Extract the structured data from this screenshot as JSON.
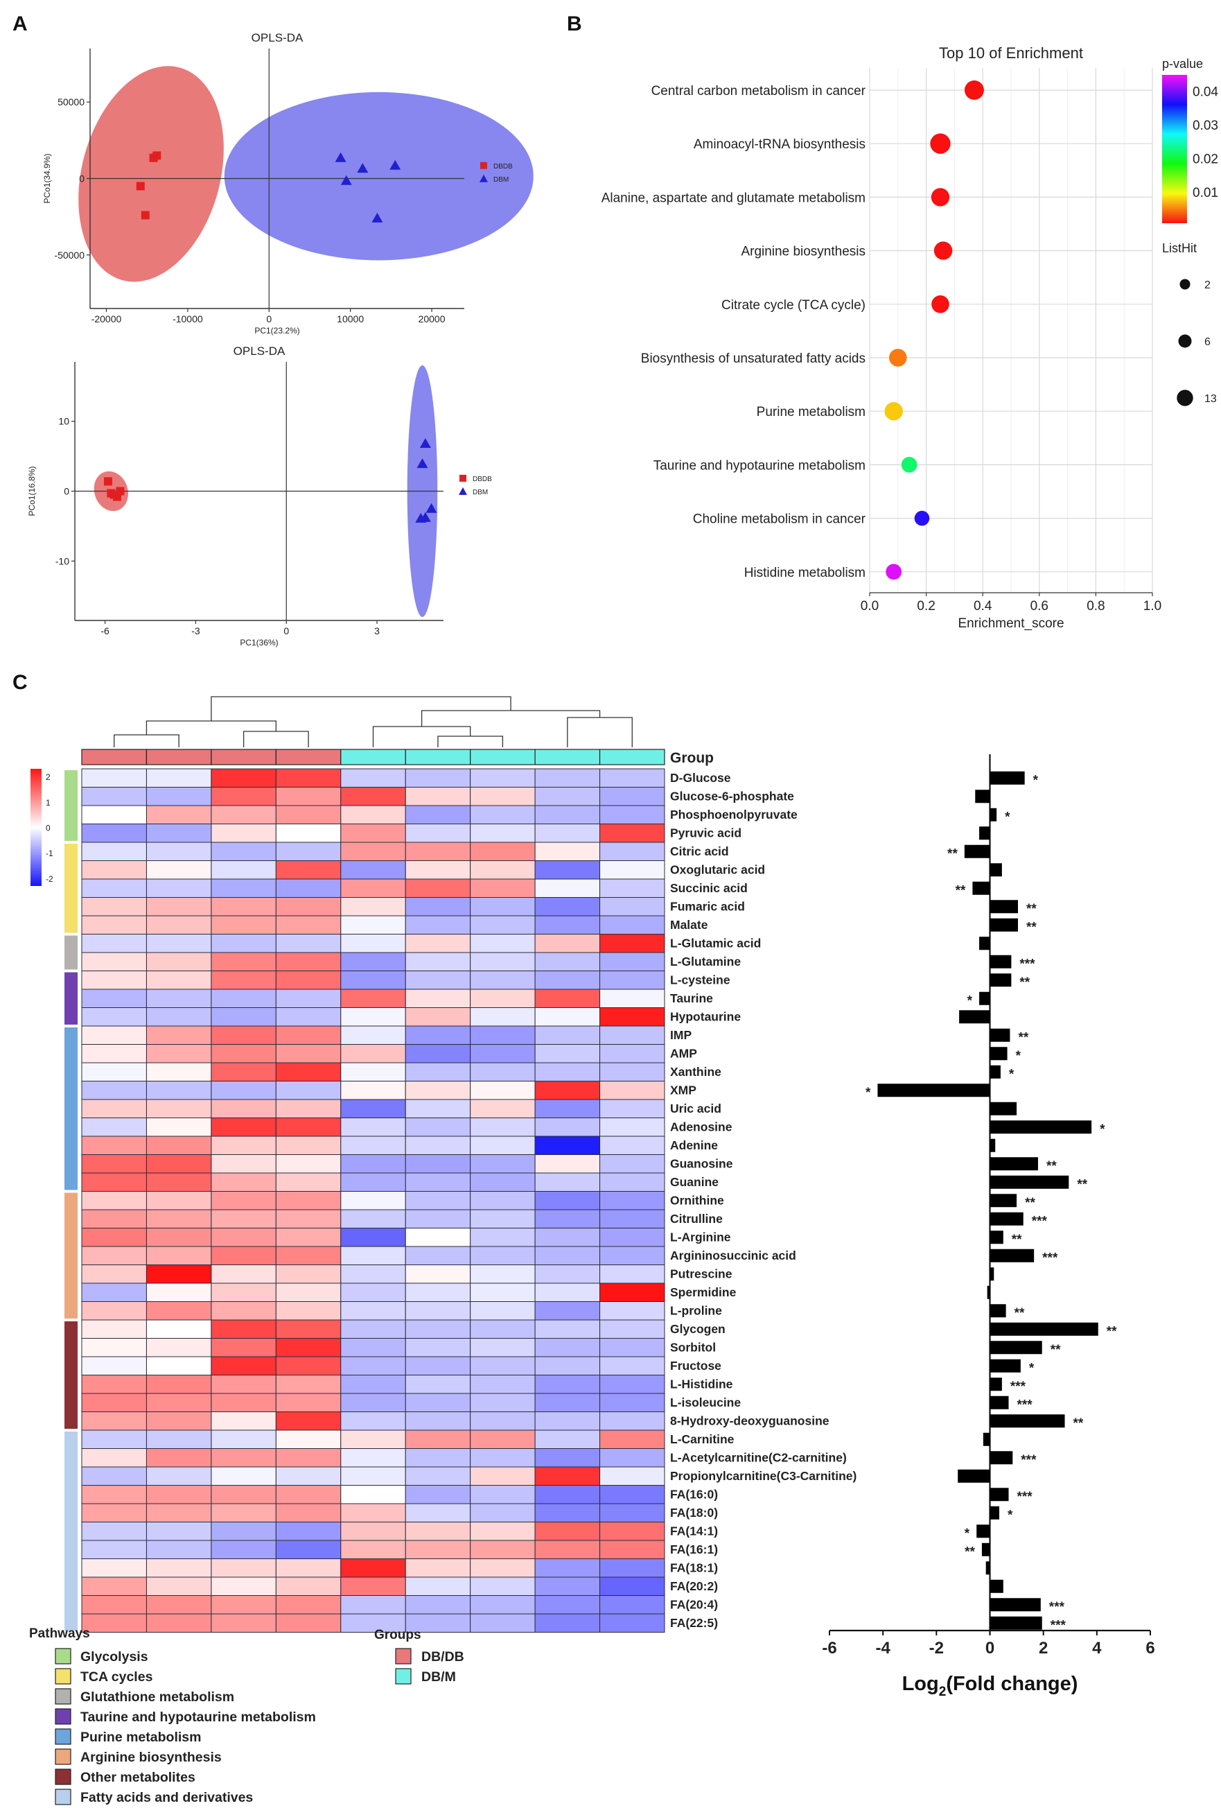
{
  "panel_labels": {
    "a": "A",
    "b": "B",
    "c": "C"
  },
  "chart_data": [
    {
      "type": "scatter",
      "panel": "A-top",
      "title": "OPLS-DA",
      "xlabel": "PC1(23.2%)",
      "ylabel": "PCo1(34.9%)",
      "xlim": [
        -22000,
        24000
      ],
      "ylim": [
        -85000,
        85000
      ],
      "xticks": [
        "-20000",
        "-10000",
        "0",
        "10000",
        "20000"
      ],
      "xtick_values": [
        -20000,
        -10000,
        0,
        10000,
        20000
      ],
      "yticks": [
        "50000",
        "0",
        "-50000"
      ],
      "ytick_values": [
        50000,
        0,
        -50000
      ],
      "legend": [
        {
          "name": "DBDB",
          "color": "#e02020",
          "marker": "square"
        },
        {
          "name": "DBM",
          "color": "#2020d0",
          "marker": "triangle"
        }
      ],
      "ellipses": [
        {
          "group": "DBDB",
          "cx": -14500,
          "cy": 3000,
          "rx": 8500,
          "ry": 72000,
          "angle": 15,
          "color": "#e97a7a"
        },
        {
          "group": "DBM",
          "cx": 13500,
          "cy": 1500,
          "rx": 19000,
          "ry": 55000,
          "angle": 0,
          "color": "#8787ef"
        }
      ],
      "series": [
        {
          "name": "DBDB",
          "points": [
            [
              -13800,
              15000
            ],
            [
              -14200,
              13500
            ],
            [
              -15800,
              -5000
            ],
            [
              -15200,
              -24000
            ]
          ]
        },
        {
          "name": "DBM",
          "points": [
            [
              8800,
              13500
            ],
            [
              11500,
              6500
            ],
            [
              15500,
              8500
            ],
            [
              9500,
              -1500
            ],
            [
              13300,
              -26000
            ]
          ]
        }
      ]
    },
    {
      "type": "scatter",
      "panel": "A-bottom",
      "title": "OPLS-DA",
      "xlabel": "PC1(36%)",
      "ylabel": "PCo1(16.8%)",
      "xlim": [
        -7.0,
        5.2
      ],
      "ylim": [
        -18.5,
        18.5
      ],
      "xticks": [
        "-6",
        "-3",
        "0",
        "3"
      ],
      "xtick_values": [
        -6,
        -3,
        0,
        3
      ],
      "yticks": [
        "10",
        "0",
        "-10"
      ],
      "ytick_values": [
        10,
        0,
        -10
      ],
      "legend": [
        {
          "name": "DBDB",
          "color": "#e02020",
          "marker": "square"
        },
        {
          "name": "DBM",
          "color": "#2020d0",
          "marker": "triangle"
        }
      ],
      "ellipses": [
        {
          "group": "DBDB",
          "cx": -5.8,
          "cy": 0.0,
          "rx": 0.55,
          "ry": 2.9,
          "angle": -20,
          "color": "#e97a7a"
        },
        {
          "group": "DBM",
          "cx": 4.5,
          "cy": 0.0,
          "rx": 0.5,
          "ry": 18.0,
          "angle": 0,
          "color": "#8787ef"
        }
      ],
      "series": [
        {
          "name": "DBDB",
          "points": [
            [
              -5.9,
              1.4
            ],
            [
              -5.7,
              -0.5
            ],
            [
              -5.5,
              0.0
            ],
            [
              -5.6,
              -0.8
            ],
            [
              -5.8,
              -0.3
            ]
          ]
        },
        {
          "name": "DBM",
          "points": [
            [
              4.6,
              6.8
            ],
            [
              4.5,
              3.9
            ],
            [
              4.8,
              -2.5
            ],
            [
              4.6,
              -3.8
            ],
            [
              4.45,
              -3.9
            ]
          ]
        }
      ]
    },
    {
      "type": "scatter",
      "panel": "B",
      "title": "Top 10 of  Enrichment",
      "xlabel": "Enrichment_score",
      "xlim": [
        0,
        1.0
      ],
      "xticks": [
        "0.0",
        "0.2",
        "0.4",
        "0.6",
        "0.8",
        "1.0"
      ],
      "xtick_values": [
        0,
        0.2,
        0.4,
        0.6,
        0.8,
        1.0
      ],
      "colorbar_title": "p-value",
      "colorbar_ticks": [
        "0.04",
        "0.03",
        "0.02",
        "0.01"
      ],
      "colorbar_tick_values": [
        0.04,
        0.03,
        0.02,
        0.01
      ],
      "colorbar_range": [
        0.001,
        0.045
      ],
      "size_legend_title": "ListHit",
      "size_legend": [
        "2",
        "6",
        "13"
      ],
      "size_legend_values": [
        2,
        6,
        13
      ],
      "pathways": [
        "Central carbon metabolism in cancer",
        "Aminoacyl-tRNA biosynthesis",
        "Alanine, aspartate and glutamate metabolism",
        "Arginine biosynthesis",
        "Citrate cycle (TCA cycle)",
        "Biosynthesis of unsaturated fatty acids",
        "Purine metabolism",
        "Taurine and hypotaurine metabolism",
        "Choline metabolism in cancer",
        "Histidine metabolism"
      ],
      "enrichment_score": [
        0.37,
        0.25,
        0.25,
        0.26,
        0.25,
        0.1,
        0.085,
        0.14,
        0.185,
        0.085
      ],
      "p_value": [
        0.001,
        0.001,
        0.001,
        0.001,
        0.001,
        0.005,
        0.008,
        0.022,
        0.037,
        0.044
      ],
      "list_hit": [
        11,
        13,
        9,
        9,
        8,
        8,
        9,
        5,
        4,
        5
      ]
    },
    {
      "type": "heatmap",
      "panel": "C-heatmap",
      "group_label": "Group",
      "pathways_title": "Pathways",
      "groups_title": "Groups",
      "samples_group": [
        "DB/DB",
        "DB/DB",
        "DB/DB",
        "DB/DB",
        "DB/M",
        "DB/M",
        "DB/M",
        "DB/M",
        "DB/M"
      ],
      "group_legend": [
        {
          "name": "DB/DB",
          "color": "#e8787a"
        },
        {
          "name": "DB/M",
          "color": "#6ff0e6"
        }
      ],
      "pathway_legend": [
        {
          "name": "Glycolysis",
          "color": "#a8dc8a"
        },
        {
          "name": "TCA cycles",
          "color": "#f4e06a"
        },
        {
          "name": "Glutathione metabolism",
          "color": "#b4b0b0"
        },
        {
          "name": "Taurine and hypotaurine metabolism",
          "color": "#7040b0"
        },
        {
          "name": "Purine metabolism",
          "color": "#6ca4dc"
        },
        {
          "name": "Arginine biosynthesis",
          "color": "#eca87c"
        },
        {
          "name": "Other metabolites",
          "color": "#8c3034"
        },
        {
          "name": "Fatty acids and derivatives",
          "color": "#b8d0ec"
        }
      ],
      "row_pathway_spans": [
        {
          "pathway": "Glycolysis",
          "start": 0,
          "end": 3
        },
        {
          "pathway": "TCA cycles",
          "start": 4,
          "end": 8
        },
        {
          "pathway": "Glutathione metabolism",
          "start": 9,
          "end": 10
        },
        {
          "pathway": "Taurine and hypotaurine metabolism",
          "start": 11,
          "end": 13
        },
        {
          "pathway": "Purine metabolism",
          "start": 14,
          "end": 22
        },
        {
          "pathway": "Arginine biosynthesis",
          "start": 23,
          "end": 29
        },
        {
          "pathway": "Other metabolites",
          "start": 30,
          "end": 35
        },
        {
          "pathway": "Fatty acids and derivatives",
          "start": 36,
          "end": 46
        }
      ],
      "color_scale_ticks": [
        "2",
        "1",
        "0",
        "-1",
        "-2"
      ],
      "color_scale_values": [
        2,
        1,
        0,
        -1,
        -2
      ],
      "rows": [
        "D-Glucose",
        "Glucose-6-phosphate",
        "Phosphoenolpyruvate",
        "Pyruvic acid",
        "Citric acid",
        "Oxoglutaric acid",
        "Succinic acid",
        "Fumaric acid",
        "Malate",
        "L-Glutamic acid",
        "L-Glutamine",
        "L-cysteine",
        "Taurine",
        "Hypotaurine",
        "IMP",
        "AMP",
        "Xanthine",
        "XMP",
        "Uric acid",
        "Adenosine",
        "Adenine",
        "Guanosine",
        "Guanine",
        "Ornithine",
        "Citrulline",
        "L-Arginine",
        "Argininosuccinic acid",
        "Putrescine",
        "Spermidine",
        "L-proline",
        "Glycogen",
        "Sorbitol",
        "Fructose",
        "L-Histidine",
        "L-isoleucine",
        "8-Hydroxy-deoxyguanosine",
        "L-Carnitine",
        "L-Acetylcarnitine(C2-carnitine)",
        "Propionylcarnitine(C3-Carnitine)",
        "FA(16:0)",
        "FA(18:0)",
        "FA(14:1)",
        "FA(16:1)",
        "FA(18:1)",
        "FA(20:2)",
        "FA(20:4)",
        "FA(22:5)"
      ],
      "values": [
        [
          -0.2,
          -0.2,
          2.0,
          1.8,
          -0.5,
          -0.6,
          -0.5,
          -0.6,
          -0.6
        ],
        [
          -0.6,
          -0.7,
          1.5,
          1.0,
          1.7,
          0.4,
          0.4,
          -0.6,
          -0.8
        ],
        [
          0.0,
          0.8,
          0.8,
          1.0,
          0.4,
          -0.9,
          -0.6,
          -0.7,
          -0.8
        ],
        [
          -1.0,
          -0.8,
          0.3,
          0.0,
          1.0,
          -0.4,
          -0.3,
          -0.4,
          1.8
        ],
        [
          -0.3,
          -0.4,
          -0.7,
          -0.6,
          1.0,
          1.0,
          1.1,
          0.2,
          -0.6
        ],
        [
          0.5,
          0.1,
          -0.3,
          1.6,
          -1.0,
          0.3,
          0.4,
          -1.3,
          -0.1
        ],
        [
          -0.5,
          -0.5,
          -0.8,
          -0.9,
          1.0,
          1.4,
          1.0,
          -0.1,
          -0.5
        ],
        [
          0.5,
          0.7,
          0.9,
          1.0,
          0.3,
          -0.9,
          -0.7,
          -1.2,
          -0.6
        ],
        [
          0.5,
          0.6,
          0.9,
          0.9,
          -0.1,
          -0.7,
          -0.6,
          -1.0,
          -0.8
        ],
        [
          -0.4,
          -0.4,
          -0.6,
          -0.5,
          -0.2,
          0.4,
          -0.3,
          0.6,
          2.1
        ],
        [
          0.3,
          0.5,
          1.2,
          1.3,
          -1.0,
          -0.4,
          -0.4,
          -0.6,
          -0.8
        ],
        [
          0.3,
          0.4,
          1.3,
          1.4,
          -1.0,
          -0.6,
          -0.6,
          -0.8,
          -0.8
        ],
        [
          -0.7,
          -0.6,
          -0.7,
          -0.6,
          1.4,
          0.3,
          0.4,
          1.6,
          -0.1
        ],
        [
          -0.5,
          -0.6,
          -0.8,
          -0.6,
          -0.1,
          0.6,
          -0.2,
          -0.1,
          2.2
        ],
        [
          0.2,
          0.9,
          1.4,
          1.2,
          -0.2,
          -1.0,
          -1.0,
          -0.6,
          -0.6
        ],
        [
          0.2,
          0.8,
          1.2,
          1.0,
          0.6,
          -1.2,
          -1.0,
          -0.5,
          -0.6
        ],
        [
          -0.1,
          0.1,
          1.5,
          1.9,
          -0.1,
          -0.6,
          -0.6,
          -0.6,
          -0.6
        ],
        [
          -0.6,
          -0.6,
          -0.7,
          -0.6,
          0.1,
          0.3,
          0.1,
          2.0,
          0.5
        ],
        [
          0.5,
          0.5,
          0.7,
          0.6,
          -1.3,
          -0.4,
          0.4,
          -1.1,
          -0.5
        ],
        [
          -0.4,
          0.1,
          1.9,
          1.8,
          -0.4,
          -0.6,
          -0.4,
          -0.6,
          -0.3
        ],
        [
          1.0,
          1.1,
          0.5,
          0.5,
          -0.4,
          -0.4,
          -0.3,
          -2.2,
          -0.4
        ],
        [
          1.5,
          1.6,
          0.3,
          0.2,
          -0.9,
          -0.9,
          -0.8,
          0.2,
          -0.6
        ],
        [
          1.5,
          1.5,
          0.8,
          0.5,
          -0.8,
          -0.7,
          -0.8,
          -0.5,
          -0.6
        ],
        [
          0.5,
          0.6,
          1.0,
          1.0,
          -0.1,
          -0.6,
          -0.6,
          -1.2,
          -1.0
        ],
        [
          1.0,
          0.9,
          0.8,
          0.8,
          -0.5,
          -0.6,
          -0.5,
          -1.0,
          -1.0
        ],
        [
          1.3,
          1.1,
          1.0,
          0.8,
          -1.5,
          0.0,
          -0.5,
          -0.7,
          -0.9
        ],
        [
          0.7,
          0.8,
          1.3,
          1.2,
          -0.3,
          -0.6,
          -0.6,
          -0.7,
          -0.8
        ],
        [
          0.5,
          2.3,
          0.3,
          0.5,
          -0.4,
          0.1,
          -0.2,
          -0.5,
          -0.4
        ],
        [
          -0.7,
          0.1,
          0.5,
          0.3,
          -0.5,
          -0.3,
          -0.2,
          -0.3,
          2.3
        ],
        [
          0.6,
          1.1,
          0.8,
          0.5,
          -0.4,
          -0.4,
          -0.3,
          -1.0,
          -0.4
        ],
        [
          0.2,
          0.0,
          1.8,
          1.6,
          -0.6,
          -0.6,
          -0.6,
          -0.5,
          -0.5
        ],
        [
          0.1,
          0.2,
          1.4,
          2.0,
          -0.7,
          -0.5,
          -0.4,
          -0.7,
          -0.7
        ],
        [
          -0.1,
          0.0,
          2.0,
          1.7,
          -0.7,
          -0.7,
          -0.6,
          -0.6,
          -0.5
        ],
        [
          1.1,
          1.2,
          1.0,
          0.9,
          -0.8,
          -0.5,
          -0.6,
          -1.0,
          -1.0
        ],
        [
          1.2,
          1.1,
          1.1,
          1.0,
          -0.8,
          -0.7,
          -0.6,
          -1.0,
          -1.0
        ],
        [
          0.9,
          1.0,
          0.2,
          1.9,
          -0.5,
          -0.6,
          -0.6,
          -0.6,
          -0.6
        ],
        [
          -0.5,
          -0.5,
          -0.3,
          0.1,
          0.3,
          1.0,
          1.0,
          -0.5,
          1.2
        ],
        [
          0.3,
          1.1,
          1.0,
          1.0,
          -0.2,
          -0.6,
          -0.6,
          -1.1,
          -0.8
        ],
        [
          -0.6,
          -0.4,
          -0.1,
          -0.3,
          -0.2,
          -0.5,
          0.4,
          2.0,
          -0.2
        ],
        [
          0.9,
          1.0,
          1.0,
          1.0,
          0.0,
          -0.8,
          -0.6,
          -1.3,
          -1.3
        ],
        [
          0.9,
          0.9,
          0.8,
          1.0,
          0.6,
          -0.4,
          -0.6,
          -1.2,
          -1.2
        ],
        [
          -0.5,
          -0.5,
          -0.8,
          -1.0,
          0.6,
          0.5,
          0.4,
          1.5,
          1.4
        ],
        [
          -0.5,
          -0.6,
          -0.9,
          -1.3,
          0.7,
          0.8,
          0.9,
          1.2,
          1.3
        ],
        [
          0.2,
          0.3,
          0.4,
          0.4,
          2.1,
          0.4,
          0.4,
          -1.0,
          -1.2
        ],
        [
          0.9,
          0.4,
          0.2,
          0.5,
          1.3,
          -0.3,
          -0.4,
          -1.0,
          -1.5
        ],
        [
          1.1,
          1.1,
          1.0,
          1.1,
          -0.6,
          -0.7,
          -0.7,
          -1.1,
          -1.2
        ],
        [
          1.1,
          1.1,
          1.0,
          1.1,
          -0.6,
          -0.7,
          -0.7,
          -1.2,
          -1.2
        ]
      ]
    },
    {
      "type": "bar",
      "panel": "C-bars",
      "orientation": "horizontal",
      "xlabel": "Log2(Fold change)",
      "xlabel_base": "Log",
      "xlabel_sub": "2",
      "xlabel_rest": "(Fold change)",
      "xlim": [
        -6,
        6
      ],
      "xticks": [
        "-6",
        "-4",
        "-2",
        "0",
        "2",
        "4",
        "6"
      ],
      "xtick_values": [
        -6,
        -4,
        -2,
        0,
        2,
        4,
        6
      ],
      "values": [
        1.3,
        -0.55,
        0.25,
        -0.4,
        -0.95,
        0.45,
        -0.65,
        1.05,
        1.05,
        -0.4,
        0.8,
        0.8,
        -0.4,
        -1.15,
        0.75,
        0.65,
        0.4,
        -4.2,
        1.0,
        3.8,
        0.2,
        1.8,
        2.95,
        1.0,
        1.25,
        0.5,
        1.65,
        0.15,
        -0.1,
        0.6,
        4.05,
        1.95,
        1.15,
        0.45,
        0.7,
        2.8,
        -0.25,
        0.85,
        -1.2,
        0.7,
        0.35,
        -0.5,
        -0.3,
        -0.15,
        0.5,
        1.9,
        1.95
      ],
      "significance": [
        "*",
        "",
        "*",
        "",
        "**",
        "",
        "**",
        "**",
        "**",
        "",
        "***",
        "**",
        "*",
        "",
        "**",
        "*",
        "*",
        "*",
        "",
        "*",
        "",
        "**",
        "**",
        "**",
        "***",
        "**",
        "***",
        "",
        "",
        "**",
        "**",
        "**",
        "*",
        "***",
        "***",
        "**",
        "",
        "***",
        "",
        "***",
        "*",
        "*",
        "**",
        "",
        "",
        "***",
        "***"
      ]
    }
  ]
}
